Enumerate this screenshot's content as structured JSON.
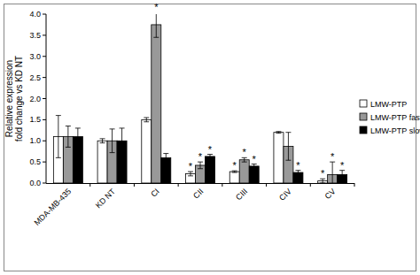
{
  "chart_data": {
    "type": "bar",
    "y_label": [
      "Relative expression",
      "fold change vs KD NT"
    ],
    "categories": [
      "MDA-MB-435",
      "KD NT",
      "CI",
      "CII",
      "CIII",
      "CIV",
      "CV"
    ],
    "series": [
      {
        "name": "LMW-PTP",
        "color": "#ffffff",
        "values": [
          1.1,
          1.0,
          1.5,
          0.22,
          0.27,
          1.2,
          0.05
        ],
        "errors": [
          0.5,
          0.05,
          0.05,
          0.05,
          0.02,
          0.02,
          0.05
        ],
        "significance": [
          null,
          null,
          null,
          "*",
          "*",
          null,
          "*"
        ]
      },
      {
        "name": "LMW-PTP fast",
        "color": "#999999",
        "values": [
          1.1,
          1.0,
          3.75,
          0.42,
          0.55,
          0.87,
          0.2
        ],
        "errors": [
          0.25,
          0.28,
          0.3,
          0.08,
          0.05,
          0.33,
          0.3
        ],
        "significance": [
          null,
          null,
          "*",
          "*",
          "*",
          null,
          "*"
        ]
      },
      {
        "name": "LMW-PTP slow",
        "color": "#000000",
        "values": [
          1.1,
          1.0,
          0.6,
          0.63,
          0.4,
          0.25,
          0.2
        ],
        "errors": [
          0.2,
          0.3,
          0.1,
          0.05,
          0.05,
          0.05,
          0.1
        ],
        "significance": [
          null,
          null,
          null,
          "*",
          "*",
          "*",
          "*"
        ]
      }
    ],
    "ylim": [
      0,
      4
    ],
    "yticks": [
      {
        "value": 0,
        "label": "0.0"
      },
      {
        "value": 0.5,
        "label": "0.5"
      },
      {
        "value": 1,
        "label": "1.0"
      },
      {
        "value": 1.5,
        "label": "1.5"
      },
      {
        "value": 2,
        "label": "2.0"
      },
      {
        "value": 2.5,
        "label": "2.5"
      },
      {
        "value": 3,
        "label": "3.0"
      },
      {
        "value": 3.5,
        "label": "3.5"
      },
      {
        "value": 4,
        "label": "4.0"
      }
    ],
    "grid": false,
    "legend": "right"
  }
}
